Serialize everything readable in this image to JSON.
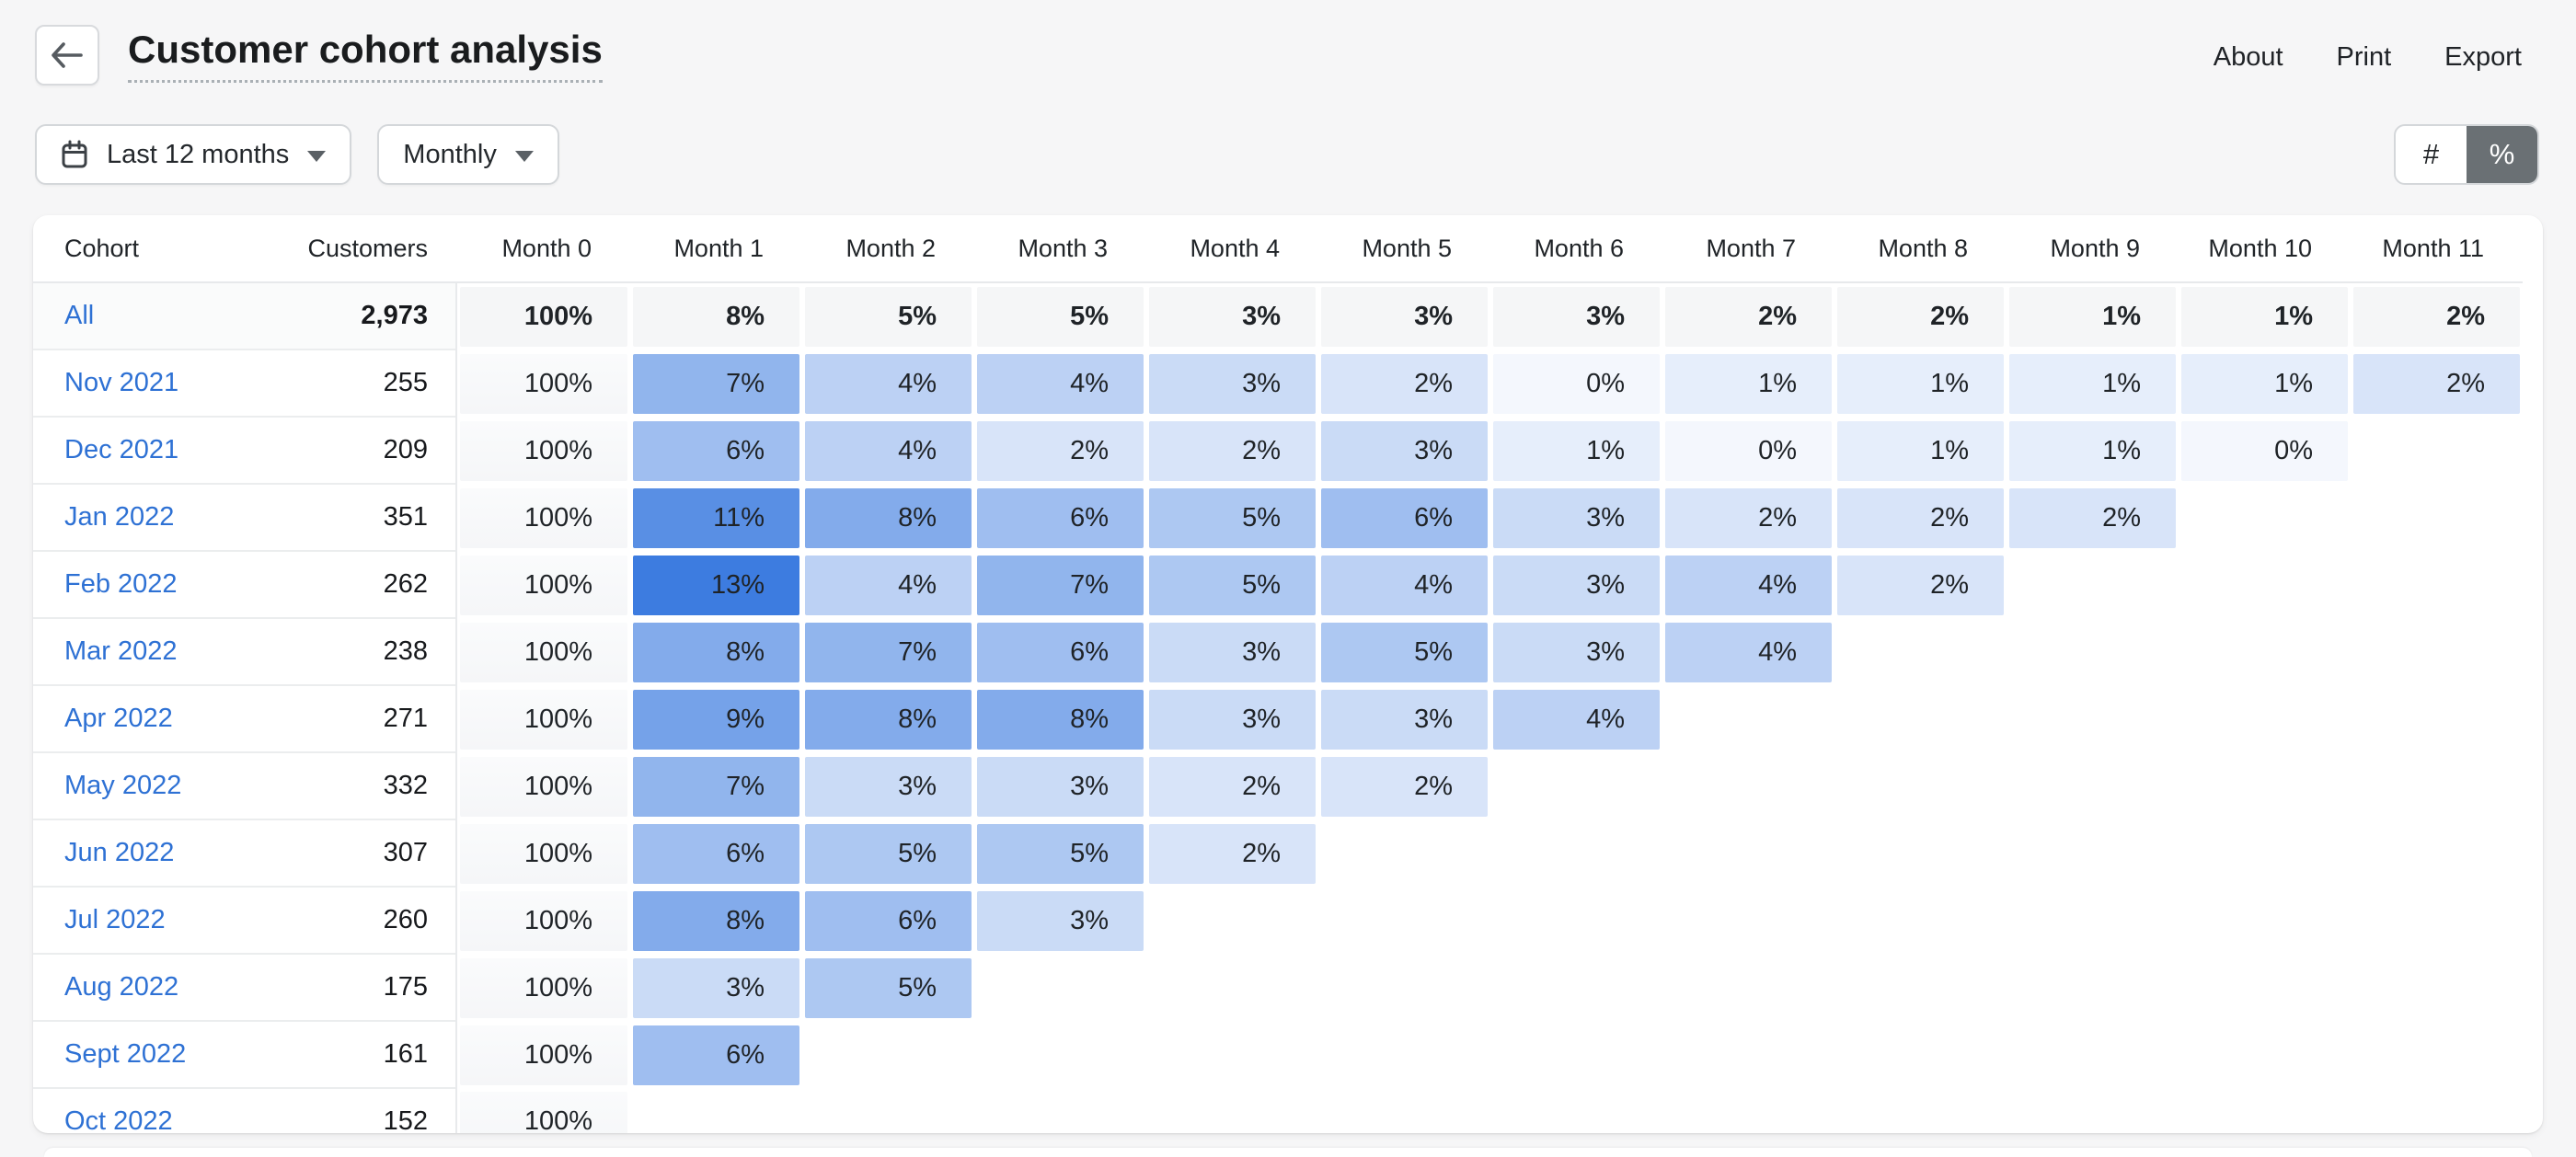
{
  "header": {
    "title": "Customer cohort analysis",
    "actions": [
      {
        "label": "About"
      },
      {
        "label": "Print"
      },
      {
        "label": "Export"
      }
    ]
  },
  "toolbar": {
    "date_range_label": "Last 12 months",
    "granularity_label": "Monthly",
    "toggle": {
      "count_label": "#",
      "percent_label": "%",
      "selected": "%"
    }
  },
  "colors": {
    "link_blue": "#2e71d4",
    "heat_base_blue": "#3d7ce0",
    "toggle_selected_bg": "#6a7074",
    "page_background": "#f6f6f7"
  },
  "chart_data": {
    "type": "heatmap",
    "title": "Customer cohort analysis",
    "value_format": "percent",
    "heat_color": "#3d7ce0",
    "columns": [
      "Cohort",
      "Customers",
      "Month 0",
      "Month 1",
      "Month 2",
      "Month 3",
      "Month 4",
      "Month 5",
      "Month 6",
      "Month 7",
      "Month 8",
      "Month 9",
      "Month 10",
      "Month 11"
    ],
    "rows": [
      {
        "cohort": "All",
        "customers": "2,973",
        "is_summary": true,
        "values": [
          100,
          8,
          5,
          5,
          3,
          3,
          3,
          2,
          2,
          1,
          1,
          2
        ]
      },
      {
        "cohort": "Nov 2021",
        "customers": "255",
        "is_summary": false,
        "values": [
          100,
          7,
          4,
          4,
          3,
          2,
          0,
          1,
          1,
          1,
          1,
          2
        ]
      },
      {
        "cohort": "Dec 2021",
        "customers": "209",
        "is_summary": false,
        "values": [
          100,
          6,
          4,
          2,
          2,
          3,
          1,
          0,
          1,
          1,
          0
        ]
      },
      {
        "cohort": "Jan 2022",
        "customers": "351",
        "is_summary": false,
        "values": [
          100,
          11,
          8,
          6,
          5,
          6,
          3,
          2,
          2,
          2
        ]
      },
      {
        "cohort": "Feb 2022",
        "customers": "262",
        "is_summary": false,
        "values": [
          100,
          13,
          4,
          7,
          5,
          4,
          3,
          4,
          2
        ]
      },
      {
        "cohort": "Mar 2022",
        "customers": "238",
        "is_summary": false,
        "values": [
          100,
          8,
          7,
          6,
          3,
          5,
          3,
          4
        ]
      },
      {
        "cohort": "Apr 2022",
        "customers": "271",
        "is_summary": false,
        "values": [
          100,
          9,
          8,
          8,
          3,
          3,
          4
        ]
      },
      {
        "cohort": "May 2022",
        "customers": "332",
        "is_summary": false,
        "values": [
          100,
          7,
          3,
          3,
          2,
          2
        ]
      },
      {
        "cohort": "Jun 2022",
        "customers": "307",
        "is_summary": false,
        "values": [
          100,
          6,
          5,
          5,
          2
        ]
      },
      {
        "cohort": "Jul 2022",
        "customers": "260",
        "is_summary": false,
        "values": [
          100,
          8,
          6,
          3
        ]
      },
      {
        "cohort": "Aug 2022",
        "customers": "175",
        "is_summary": false,
        "values": [
          100,
          3,
          5
        ]
      },
      {
        "cohort": "Sept 2022",
        "customers": "161",
        "is_summary": false,
        "values": [
          100,
          6
        ]
      },
      {
        "cohort": "Oct 2022",
        "customers": "152",
        "is_summary": false,
        "values": [
          100
        ]
      }
    ]
  }
}
